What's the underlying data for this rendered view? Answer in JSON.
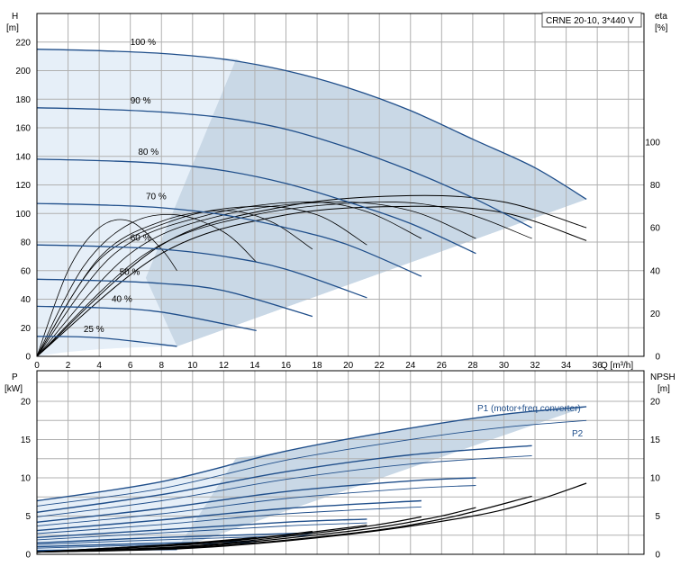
{
  "title": "CRNE 20-10, 3*440 V",
  "colors": {
    "curve": "#1f4e8a",
    "eta": "#000000",
    "region": "#c9d8e6",
    "region_light": "#e6eff8",
    "grid": "#b0b0b0"
  },
  "upper": {
    "ylabel_left": [
      "H",
      "[m]"
    ],
    "ylabel_right": [
      "eta",
      "[%]"
    ],
    "xlabel": "Q [m³/h]",
    "x_ticks": [
      "0",
      "2",
      "4",
      "6",
      "8",
      "10",
      "12",
      "14",
      "16",
      "18",
      "20",
      "22",
      "24",
      "26",
      "28",
      "30",
      "32",
      "34",
      "36"
    ],
    "y_ticks_left": [
      "0",
      "20",
      "40",
      "60",
      "80",
      "100",
      "120",
      "140",
      "160",
      "180",
      "200",
      "220"
    ],
    "y_ticks_right": [
      "0",
      "20",
      "40",
      "60",
      "80",
      "100"
    ]
  },
  "lower": {
    "ylabel_left": [
      "P",
      "[kW]"
    ],
    "ylabel_right": [
      "NPSH",
      "[m]"
    ],
    "y_ticks_left": [
      "0",
      "5",
      "10",
      "15",
      "20"
    ],
    "y_ticks_right": [
      "0",
      "5",
      "10",
      "15",
      "20"
    ],
    "label_p1": "P1 (motor+freq.converter)",
    "label_p2": "P2"
  },
  "chart_data": [
    {
      "type": "line",
      "name": "head",
      "xlabel": "Q [m³/h]",
      "ylabel": "H [m]",
      "xlim": [
        0,
        39
      ],
      "ylim": [
        0,
        240
      ],
      "ylim_right": [
        0,
        160
      ],
      "grid": true,
      "head_curves": [
        {
          "speed": "100 %",
          "q_max": 35.3,
          "h": [
            [
              0,
              215
            ],
            [
              4,
              214
            ],
            [
              8,
              212
            ],
            [
              12,
              208
            ],
            [
              16,
              200
            ],
            [
              20,
              188
            ],
            [
              24,
              172
            ],
            [
              28,
              152
            ],
            [
              32,
              132
            ],
            [
              35.3,
              110
            ]
          ]
        },
        {
          "speed": "90 %",
          "q_max": 31.8,
          "h": [
            [
              0,
              174
            ],
            [
              4,
              173
            ],
            [
              8,
              171
            ],
            [
              12,
              167
            ],
            [
              16,
              159
            ],
            [
              20,
              146
            ],
            [
              24,
              130
            ],
            [
              28,
              111
            ],
            [
              31.8,
              90
            ]
          ]
        },
        {
          "speed": "80 %",
          "q_max": 28.2,
          "h": [
            [
              0,
              138
            ],
            [
              4,
              137
            ],
            [
              8,
              135
            ],
            [
              12,
              130
            ],
            [
              16,
              121
            ],
            [
              20,
              108
            ],
            [
              24,
              93
            ],
            [
              28.2,
              72
            ]
          ]
        },
        {
          "speed": "70 %",
          "q_max": 24.7,
          "h": [
            [
              0,
              107
            ],
            [
              4,
              106
            ],
            [
              8,
              104
            ],
            [
              12,
              99
            ],
            [
              16,
              90
            ],
            [
              20,
              78
            ],
            [
              24.7,
              56
            ]
          ]
        },
        {
          "speed": "60 %",
          "q_max": 21.2,
          "h": [
            [
              0,
              78
            ],
            [
              4,
              77
            ],
            [
              8,
              75
            ],
            [
              12,
              70
            ],
            [
              16,
              61
            ],
            [
              21.2,
              41
            ]
          ]
        },
        {
          "speed": "50 %",
          "q_max": 17.7,
          "h": [
            [
              0,
              54
            ],
            [
              4,
              53
            ],
            [
              8,
              51
            ],
            [
              12,
              46
            ],
            [
              17.7,
              28
            ]
          ]
        },
        {
          "speed": "40 %",
          "q_max": 14.1,
          "h": [
            [
              0,
              35
            ],
            [
              4,
              34
            ],
            [
              8,
              31
            ],
            [
              14.1,
              18
            ]
          ]
        },
        {
          "speed": "25 %",
          "q_max": 9.0,
          "h": [
            [
              0,
              14
            ],
            [
              4,
              13
            ],
            [
              9,
              7
            ]
          ]
        }
      ],
      "eta_curves": [
        {
          "q_max": 35.3,
          "eta": [
            [
              0,
              0
            ],
            [
              8,
              52
            ],
            [
              16,
              70
            ],
            [
              24,
              75
            ],
            [
              30,
              72
            ],
            [
              35.3,
              60
            ]
          ]
        },
        {
          "q_max": 35.3,
          "eta": [
            [
              0,
              0
            ],
            [
              8,
              48
            ],
            [
              16,
              66
            ],
            [
              24,
              70
            ],
            [
              30,
              67
            ],
            [
              35.3,
              54
            ]
          ]
        },
        {
          "q_max": 31.8,
          "eta": [
            [
              0,
              0
            ],
            [
              7,
              48
            ],
            [
              14,
              66
            ],
            [
              22,
              72
            ],
            [
              27,
              68
            ],
            [
              31.8,
              55
            ]
          ]
        },
        {
          "q_max": 28.2,
          "eta": [
            [
              0,
              0
            ],
            [
              6,
              48
            ],
            [
              12,
              66
            ],
            [
              19,
              72
            ],
            [
              24,
              68
            ],
            [
              28.2,
              55
            ]
          ]
        },
        {
          "q_max": 24.7,
          "eta": [
            [
              0,
              0
            ],
            [
              5,
              48
            ],
            [
              11,
              66
            ],
            [
              17,
              72
            ],
            [
              21,
              68
            ],
            [
              24.7,
              55
            ]
          ]
        },
        {
          "q_max": 21.2,
          "eta": [
            [
              0,
              0
            ],
            [
              4,
              45
            ],
            [
              9,
              64
            ],
            [
              14,
              70
            ],
            [
              18,
              66
            ],
            [
              21.2,
              52
            ]
          ]
        },
        {
          "q_max": 17.7,
          "eta": [
            [
              0,
              0
            ],
            [
              4,
              46
            ],
            [
              8,
              63
            ],
            [
              12,
              68
            ],
            [
              15,
              63
            ],
            [
              17.7,
              50
            ]
          ]
        },
        {
          "q_max": 14.1,
          "eta": [
            [
              0,
              0
            ],
            [
              3,
              42
            ],
            [
              6,
              62
            ],
            [
              9,
              66
            ],
            [
              12,
              58
            ],
            [
              14.1,
              44
            ]
          ]
        },
        {
          "q_max": 9.0,
          "eta": [
            [
              0,
              0
            ],
            [
              2,
              40
            ],
            [
              4,
              60
            ],
            [
              6,
              63
            ],
            [
              8,
              50
            ],
            [
              9,
              40
            ]
          ]
        }
      ]
    },
    {
      "type": "line",
      "name": "power",
      "ylabel": "P [kW]",
      "xlim": [
        0,
        39
      ],
      "ylim": [
        0,
        24
      ],
      "ylim_right": [
        0,
        24
      ],
      "grid": true,
      "p1_curves": [
        {
          "q_max": 35.3,
          "p": [
            [
              0,
              7.0
            ],
            [
              8,
              9.5
            ],
            [
              16,
              13.5
            ],
            [
              24,
              16.5
            ],
            [
              30,
              18.3
            ],
            [
              35.3,
              19.3
            ]
          ]
        },
        {
          "q_max": 31.8,
          "p": [
            [
              0,
              5.5
            ],
            [
              8,
              7.8
            ],
            [
              16,
              10.8
            ],
            [
              24,
              13.0
            ],
            [
              31.8,
              14.2
            ]
          ]
        },
        {
          "q_max": 28.2,
          "p": [
            [
              0,
              4.2
            ],
            [
              8,
              6.0
            ],
            [
              16,
              8.2
            ],
            [
              24,
              9.6
            ],
            [
              28.2,
              10.0
            ]
          ]
        },
        {
          "q_max": 24.7,
          "p": [
            [
              0,
              3.1
            ],
            [
              8,
              4.5
            ],
            [
              16,
              6.0
            ],
            [
              24.7,
              7.0
            ]
          ]
        },
        {
          "q_max": 21.2,
          "p": [
            [
              0,
              2.2
            ],
            [
              8,
              3.2
            ],
            [
              16,
              4.2
            ],
            [
              21.2,
              4.6
            ]
          ]
        },
        {
          "q_max": 17.7,
          "p": [
            [
              0,
              1.5
            ],
            [
              8,
              2.2
            ],
            [
              17.7,
              2.8
            ]
          ]
        },
        {
          "q_max": 14.1,
          "p": [
            [
              0,
              1.0
            ],
            [
              7,
              1.4
            ],
            [
              14.1,
              1.7
            ]
          ]
        },
        {
          "q_max": 9.0,
          "p": [
            [
              0,
              0.5
            ],
            [
              4,
              0.6
            ],
            [
              9,
              0.7
            ]
          ]
        }
      ],
      "p2_curves": [
        {
          "q_max": 35.3,
          "p": [
            [
              0,
              6.3
            ],
            [
              8,
              8.6
            ],
            [
              16,
              12.3
            ],
            [
              24,
              15.0
            ],
            [
              30,
              16.6
            ],
            [
              35.3,
              17.5
            ]
          ]
        },
        {
          "q_max": 31.8,
          "p": [
            [
              0,
              4.9
            ],
            [
              8,
              7.0
            ],
            [
              16,
              9.8
            ],
            [
              24,
              11.8
            ],
            [
              31.8,
              12.9
            ]
          ]
        },
        {
          "q_max": 28.2,
          "p": [
            [
              0,
              3.7
            ],
            [
              8,
              5.3
            ],
            [
              16,
              7.3
            ],
            [
              24,
              8.6
            ],
            [
              28.2,
              9.0
            ]
          ]
        },
        {
          "q_max": 24.7,
          "p": [
            [
              0,
              2.7
            ],
            [
              8,
              3.9
            ],
            [
              16,
              5.3
            ],
            [
              24.7,
              6.2
            ]
          ]
        },
        {
          "q_max": 21.2,
          "p": [
            [
              0,
              1.9
            ],
            [
              8,
              2.8
            ],
            [
              16,
              3.7
            ],
            [
              21.2,
              4.1
            ]
          ]
        },
        {
          "q_max": 17.7,
          "p": [
            [
              0,
              1.3
            ],
            [
              8,
              1.9
            ],
            [
              17.7,
              2.5
            ]
          ]
        },
        {
          "q_max": 14.1,
          "p": [
            [
              0,
              0.8
            ],
            [
              7,
              1.2
            ],
            [
              14.1,
              1.5
            ]
          ]
        },
        {
          "q_max": 9.0,
          "p": [
            [
              0,
              0.4
            ],
            [
              4,
              0.5
            ],
            [
              9,
              0.6
            ]
          ]
        }
      ],
      "npsh_curves": [
        {
          "q_max": 35.3,
          "npsh": [
            [
              0,
              0.3
            ],
            [
              10,
              0.8
            ],
            [
              20,
              2.6
            ],
            [
              28,
              5.0
            ],
            [
              32,
              7.0
            ],
            [
              35.3,
              9.3
            ]
          ]
        },
        {
          "q_max": 31.8,
          "npsh": [
            [
              0,
              0.3
            ],
            [
              10,
              0.9
            ],
            [
              20,
              2.7
            ],
            [
              26,
              4.6
            ],
            [
              31.8,
              7.6
            ]
          ]
        },
        {
          "q_max": 28.2,
          "npsh": [
            [
              0,
              0.3
            ],
            [
              10,
              1.0
            ],
            [
              20,
              3.0
            ],
            [
              25,
              4.6
            ],
            [
              28.2,
              6.1
            ]
          ]
        },
        {
          "q_max": 24.7,
          "npsh": [
            [
              0,
              0.3
            ],
            [
              10,
              1.1
            ],
            [
              18,
              2.8
            ],
            [
              22,
              3.9
            ],
            [
              24.7,
              4.9
            ]
          ]
        },
        {
          "q_max": 21.2,
          "npsh": [
            [
              0,
              0.3
            ],
            [
              10,
              1.3
            ],
            [
              16,
              2.5
            ],
            [
              21.2,
              3.8
            ]
          ]
        },
        {
          "q_max": 17.7,
          "npsh": [
            [
              0,
              0.3
            ],
            [
              9,
              1.3
            ],
            [
              14,
              2.1
            ],
            [
              17.7,
              3.0
            ]
          ]
        },
        {
          "q_max": 14.1,
          "npsh": [
            [
              0,
              0.3
            ],
            [
              8,
              1.2
            ],
            [
              14.1,
              2.2
            ]
          ]
        }
      ]
    }
  ]
}
